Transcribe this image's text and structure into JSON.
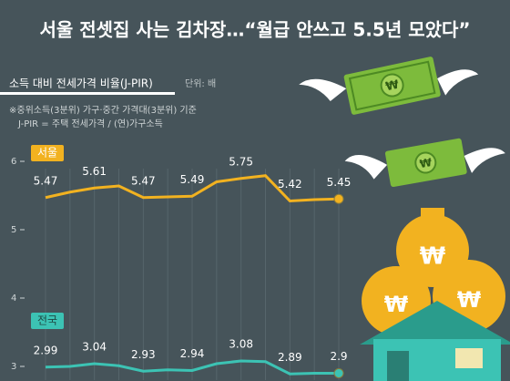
{
  "chart_data": {
    "type": "line",
    "title": "서울 전셋집 사는 김차장…“월급 안쓰고 5.5년 모았다”",
    "subtitle": "소득 대비 전세가격 비율(J-PIR)",
    "unit": "단위: 배",
    "notes": [
      "※중위소득(3분위) 가구·중간 가격대(3분위) 기준",
      "J-PIR = 주택 전세가격 / (연)가구소득"
    ],
    "categories": [
      null,
      null,
      null,
      null,
      null,
      null,
      null,
      null,
      null,
      null,
      null,
      null,
      null
    ],
    "series": [
      {
        "name": "서울",
        "color": "#f2b220",
        "values": [
          5.47,
          5.55,
          5.61,
          5.64,
          5.47,
          5.48,
          5.49,
          5.7,
          5.75,
          5.79,
          5.42,
          5.44,
          5.45
        ]
      },
      {
        "name": "전국",
        "color": "#3cc3b4",
        "values": [
          2.99,
          3.0,
          3.04,
          3.01,
          2.93,
          2.95,
          2.94,
          3.04,
          3.08,
          3.07,
          2.89,
          2.9,
          2.9
        ]
      }
    ],
    "labeled_points": [
      0,
      2,
      4,
      6,
      8,
      10,
      12
    ],
    "ylim": [
      2.8,
      6.2
    ],
    "yticks": [
      3,
      4,
      5,
      6
    ],
    "grid": true
  }
}
